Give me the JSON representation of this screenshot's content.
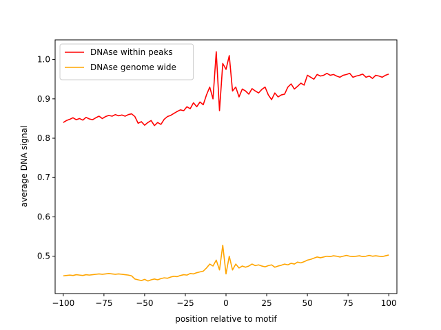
{
  "chart_data": {
    "type": "line",
    "title": "",
    "xlabel": "position relative to motif",
    "ylabel": "average DNA signal",
    "xlim": [
      -105,
      105
    ],
    "ylim": [
      0.405,
      1.05
    ],
    "xticks": [
      -100,
      -75,
      -50,
      -25,
      0,
      25,
      50,
      75,
      100
    ],
    "xtick_labels": [
      "−100",
      "−75",
      "−50",
      "−25",
      "0",
      "25",
      "50",
      "75",
      "100"
    ],
    "yticks": [
      0.5,
      0.6,
      0.7,
      0.8,
      0.9,
      1.0
    ],
    "ytick_labels": [
      "0.5",
      "0.6",
      "0.7",
      "0.8",
      "0.9",
      "1.0"
    ],
    "grid": false,
    "legend_position": "top-left",
    "series": [
      {
        "name": "DNAse within peaks",
        "color": "#ff0000",
        "x": [
          -100,
          -98,
          -96,
          -94,
          -92,
          -90,
          -88,
          -86,
          -84,
          -82,
          -80,
          -78,
          -76,
          -74,
          -72,
          -70,
          -68,
          -66,
          -64,
          -62,
          -60,
          -58,
          -56,
          -54,
          -52,
          -50,
          -48,
          -46,
          -44,
          -42,
          -40,
          -38,
          -36,
          -34,
          -32,
          -30,
          -28,
          -26,
          -24,
          -22,
          -20,
          -18,
          -16,
          -14,
          -12,
          -10,
          -8,
          -6,
          -4,
          -2,
          0,
          2,
          4,
          6,
          8,
          10,
          12,
          14,
          16,
          18,
          20,
          22,
          24,
          26,
          28,
          30,
          32,
          34,
          36,
          38,
          40,
          42,
          44,
          46,
          48,
          50,
          52,
          54,
          56,
          58,
          60,
          62,
          64,
          66,
          68,
          70,
          72,
          74,
          76,
          78,
          80,
          82,
          84,
          86,
          88,
          90,
          92,
          94,
          96,
          98,
          100
        ],
        "values": [
          0.84,
          0.845,
          0.848,
          0.852,
          0.847,
          0.85,
          0.846,
          0.853,
          0.849,
          0.847,
          0.852,
          0.856,
          0.85,
          0.855,
          0.858,
          0.856,
          0.86,
          0.857,
          0.859,
          0.856,
          0.86,
          0.862,
          0.855,
          0.838,
          0.842,
          0.833,
          0.84,
          0.845,
          0.832,
          0.84,
          0.835,
          0.848,
          0.855,
          0.858,
          0.863,
          0.868,
          0.872,
          0.87,
          0.88,
          0.875,
          0.89,
          0.88,
          0.892,
          0.885,
          0.91,
          0.93,
          0.9,
          1.02,
          0.87,
          0.99,
          0.975,
          1.01,
          0.92,
          0.93,
          0.905,
          0.925,
          0.92,
          0.912,
          0.926,
          0.92,
          0.915,
          0.924,
          0.93,
          0.91,
          0.898,
          0.915,
          0.905,
          0.91,
          0.912,
          0.93,
          0.938,
          0.925,
          0.932,
          0.94,
          0.935,
          0.96,
          0.955,
          0.95,
          0.962,
          0.958,
          0.96,
          0.965,
          0.96,
          0.962,
          0.958,
          0.955,
          0.96,
          0.962,
          0.965,
          0.955,
          0.958,
          0.96,
          0.963,
          0.955,
          0.958,
          0.952,
          0.96,
          0.958,
          0.955,
          0.96,
          0.963
        ]
      },
      {
        "name": "DNAse genome wide",
        "color": "#ffa500",
        "x": [
          -100,
          -98,
          -96,
          -94,
          -92,
          -90,
          -88,
          -86,
          -84,
          -82,
          -80,
          -78,
          -76,
          -74,
          -72,
          -70,
          -68,
          -66,
          -64,
          -62,
          -60,
          -58,
          -56,
          -54,
          -52,
          -50,
          -48,
          -46,
          -44,
          -42,
          -40,
          -38,
          -36,
          -34,
          -32,
          -30,
          -28,
          -26,
          -24,
          -22,
          -20,
          -18,
          -16,
          -14,
          -12,
          -10,
          -8,
          -6,
          -4,
          -2,
          0,
          2,
          4,
          6,
          8,
          10,
          12,
          14,
          16,
          18,
          20,
          22,
          24,
          26,
          28,
          30,
          32,
          34,
          36,
          38,
          40,
          42,
          44,
          46,
          48,
          50,
          52,
          54,
          56,
          58,
          60,
          62,
          64,
          66,
          68,
          70,
          72,
          74,
          76,
          78,
          80,
          82,
          84,
          86,
          88,
          90,
          92,
          94,
          96,
          98,
          100
        ],
        "values": [
          0.45,
          0.451,
          0.452,
          0.451,
          0.453,
          0.452,
          0.451,
          0.453,
          0.452,
          0.453,
          0.454,
          0.455,
          0.454,
          0.455,
          0.456,
          0.455,
          0.454,
          0.455,
          0.454,
          0.453,
          0.452,
          0.45,
          0.442,
          0.44,
          0.438,
          0.441,
          0.437,
          0.44,
          0.442,
          0.44,
          0.443,
          0.445,
          0.444,
          0.447,
          0.449,
          0.448,
          0.451,
          0.453,
          0.452,
          0.456,
          0.455,
          0.458,
          0.46,
          0.462,
          0.47,
          0.48,
          0.475,
          0.49,
          0.465,
          0.528,
          0.455,
          0.5,
          0.465,
          0.48,
          0.47,
          0.475,
          0.472,
          0.475,
          0.48,
          0.476,
          0.478,
          0.475,
          0.473,
          0.476,
          0.478,
          0.472,
          0.475,
          0.477,
          0.48,
          0.478,
          0.482,
          0.48,
          0.485,
          0.483,
          0.486,
          0.49,
          0.492,
          0.495,
          0.498,
          0.496,
          0.498,
          0.5,
          0.499,
          0.501,
          0.5,
          0.498,
          0.5,
          0.502,
          0.5,
          0.499,
          0.5,
          0.501,
          0.499,
          0.5,
          0.502,
          0.5,
          0.501,
          0.5,
          0.499,
          0.501,
          0.503
        ]
      }
    ]
  }
}
